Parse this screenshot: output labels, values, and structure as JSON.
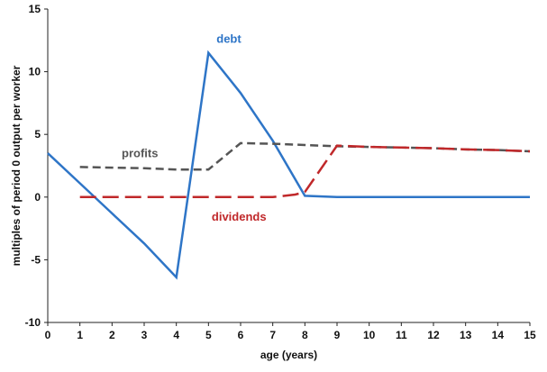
{
  "chart_data": {
    "type": "line",
    "xlabel": "age (years)",
    "ylabel": "multiples of period 0 output per worker",
    "xlim": [
      0,
      15
    ],
    "ylim": [
      -10,
      15
    ],
    "x_ticks": [
      0,
      1,
      2,
      3,
      4,
      5,
      6,
      7,
      8,
      9,
      10,
      11,
      12,
      13,
      14,
      15
    ],
    "y_ticks": [
      -10,
      -5,
      0,
      5,
      10,
      15
    ],
    "grid": false,
    "legend": "none",
    "series": [
      {
        "name": "debt",
        "color": "#2e75c7",
        "style": "solid",
        "points": [
          [
            0,
            3.5
          ],
          [
            1,
            1.1
          ],
          [
            2,
            -1.3
          ],
          [
            3,
            -3.7
          ],
          [
            4,
            -6.4
          ],
          [
            5,
            11.5
          ],
          [
            6,
            8.3
          ],
          [
            7,
            4.5
          ],
          [
            8,
            0.1
          ],
          [
            9,
            0
          ],
          [
            10,
            0
          ],
          [
            11,
            0
          ],
          [
            12,
            0
          ],
          [
            13,
            0
          ],
          [
            14,
            0
          ],
          [
            15,
            0
          ]
        ]
      },
      {
        "name": "profits",
        "color": "#555555",
        "style": "dashed",
        "points": [
          [
            1,
            2.4
          ],
          [
            2,
            2.35
          ],
          [
            3,
            2.3
          ],
          [
            4,
            2.2
          ],
          [
            5,
            2.2
          ],
          [
            6,
            4.3
          ],
          [
            7,
            4.25
          ],
          [
            8,
            4.15
          ],
          [
            9,
            4.05
          ],
          [
            10,
            4.0
          ],
          [
            11,
            3.95
          ],
          [
            12,
            3.9
          ],
          [
            13,
            3.8
          ],
          [
            14,
            3.75
          ],
          [
            15,
            3.65
          ]
        ]
      },
      {
        "name": "dividends",
        "color": "#c0282a",
        "style": "dashed",
        "points": [
          [
            1,
            0
          ],
          [
            2,
            0
          ],
          [
            3,
            0
          ],
          [
            4,
            0
          ],
          [
            5,
            0
          ],
          [
            6,
            0
          ],
          [
            7,
            0
          ],
          [
            7.7,
            0.2
          ],
          [
            8,
            0.4
          ],
          [
            9,
            4.1
          ],
          [
            10,
            4.0
          ],
          [
            11,
            3.95
          ],
          [
            12,
            3.9
          ],
          [
            13,
            3.8
          ],
          [
            14,
            3.75
          ],
          [
            15,
            3.65
          ]
        ]
      }
    ]
  }
}
